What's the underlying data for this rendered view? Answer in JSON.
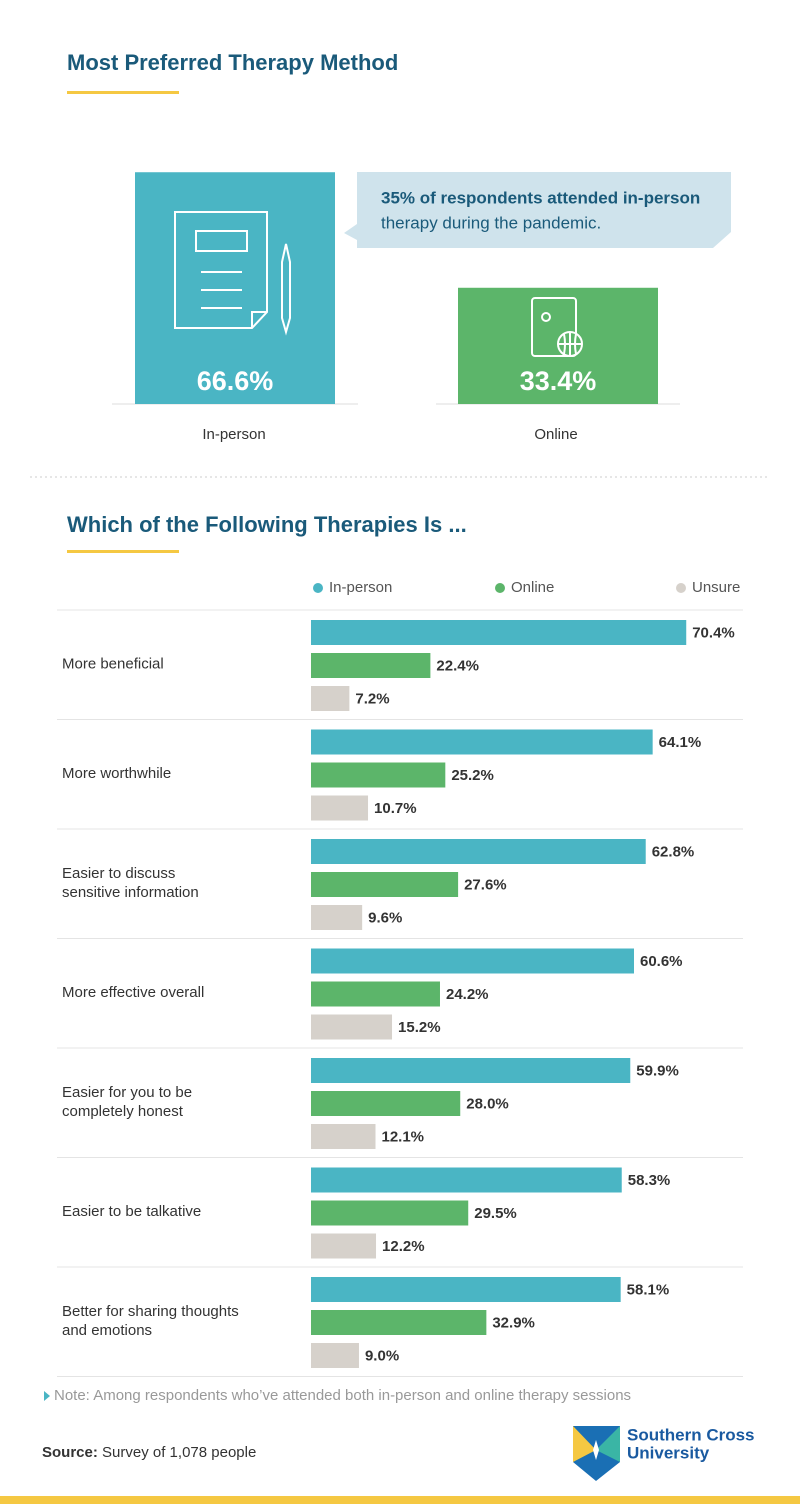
{
  "chart_data": [
    {
      "type": "column",
      "title": "Most Preferred Therapy Method",
      "categories": [
        "In-person",
        "Online"
      ],
      "values": [
        66.6,
        33.4
      ],
      "value_labels": [
        "66.6%",
        "33.4%"
      ],
      "colors": [
        "#4ab5c4",
        "#5cb56a"
      ],
      "annotation": {
        "bold": "35% of respondents attended in-person",
        "text": "therapy during the pandemic."
      }
    },
    {
      "type": "hbar",
      "title": "Which of the Following Therapies Is ...",
      "categories": [
        [
          "More beneficial"
        ],
        [
          "More worthwhile"
        ],
        [
          "Easier to discuss",
          "sensitive information"
        ],
        [
          "More effective overall"
        ],
        [
          "Easier for you to be",
          "completely honest"
        ],
        [
          "Easier to be talkative"
        ],
        [
          "Better for sharing thoughts",
          "and emotions"
        ]
      ],
      "series": [
        {
          "name": "In-person",
          "color": "#4ab5c4",
          "values": [
            70.4,
            64.1,
            62.8,
            60.6,
            59.9,
            58.3,
            58.1
          ],
          "value_labels": [
            "70.4%",
            "64.1%",
            "62.8%",
            "60.6%",
            "59.9%",
            "58.3%",
            "58.1%"
          ]
        },
        {
          "name": "Online",
          "color": "#5cb56a",
          "values": [
            22.4,
            25.2,
            27.6,
            24.2,
            28.0,
            29.5,
            32.9
          ],
          "value_labels": [
            "22.4%",
            "25.2%",
            "27.6%",
            "24.2%",
            "28.0%",
            "29.5%",
            "32.9%"
          ]
        },
        {
          "name": "Unsure",
          "color": "#d6d1cb",
          "values": [
            7.2,
            10.7,
            9.6,
            15.2,
            12.1,
            12.2,
            9.0
          ],
          "value_labels": [
            "7.2%",
            "10.7%",
            "9.6%",
            "15.2%",
            "12.1%",
            "12.2%",
            "9.0%"
          ]
        }
      ],
      "note": "Note: Among respondents who’ve attended both in-person and online therapy sessions"
    }
  ],
  "footer": {
    "source_label": "Source:",
    "source": "Survey of 1,078 people",
    "logo": [
      "Southern Cross",
      "University"
    ]
  }
}
